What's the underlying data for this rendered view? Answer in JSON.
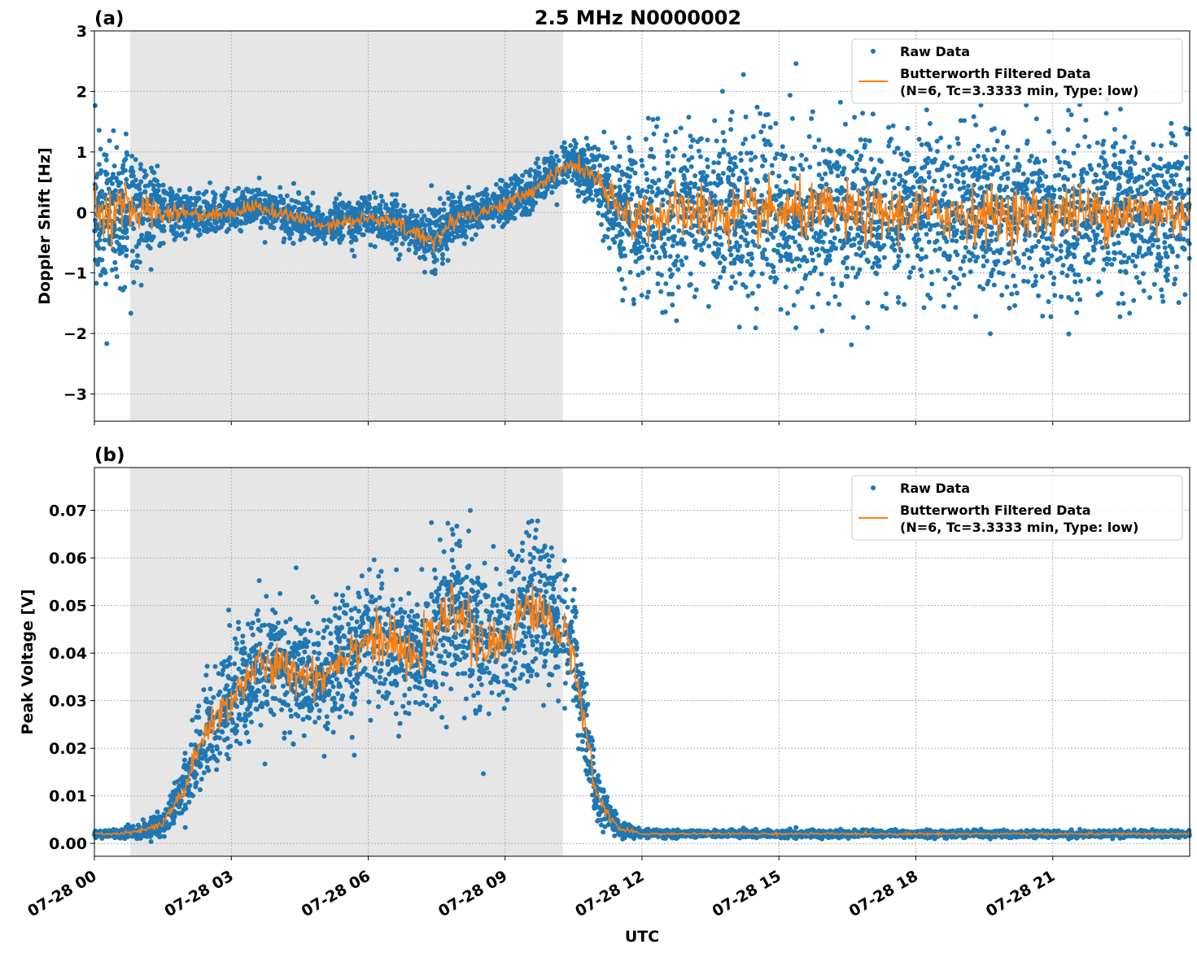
{
  "title": "2.5 MHz N0000002",
  "xlabel": "UTC",
  "colors": {
    "raw": "#1f77b4",
    "filtered": "#ff7f0e",
    "shade": "#e6e6e6"
  },
  "x_ticks": [
    "07-28 00",
    "07-28 03",
    "07-28 06",
    "07-28 09",
    "07-28 12",
    "07-28 15",
    "07-28 18",
    "07-28 21"
  ],
  "chart_data": [
    {
      "type": "scatter",
      "panel_label": "(a)",
      "ylabel": "Doppler Shift [Hz]",
      "xlim": [
        "07-28 00:00",
        "07-29 00:00"
      ],
      "ylim": [
        -3.45,
        3.0
      ],
      "y_ticks": [
        3,
        2,
        1,
        0,
        -1,
        -2,
        -3
      ],
      "y_tick_labels": [
        "3",
        "2",
        "1",
        "0",
        "−1",
        "−2",
        "−3"
      ],
      "grid": true,
      "legend_position": "top-right",
      "shaded_span": [
        "07-28 00:47",
        "07-28 10:16"
      ],
      "legend": [
        "Raw Data",
        "Butterworth Filtered Data",
        "(N=6, Tc=3.3333 min, Type: low)"
      ],
      "times": [
        "00:00",
        "00:30",
        "01:00",
        "01:30",
        "02:00",
        "02:30",
        "03:00",
        "03:30",
        "04:00",
        "04:30",
        "05:00",
        "05:30",
        "06:00",
        "06:30",
        "07:00",
        "07:30",
        "08:00",
        "08:30",
        "09:00",
        "09:30",
        "10:00",
        "10:30",
        "11:00",
        "11:30",
        "12:00",
        "13:00",
        "14:00",
        "15:00",
        "16:00",
        "17:00",
        "18:00",
        "19:00",
        "20:00",
        "21:00",
        "22:00",
        "23:00",
        "24:00"
      ],
      "filtered": [
        0.0,
        0.0,
        0.05,
        0.0,
        0.0,
        -0.05,
        0.0,
        0.1,
        0.0,
        -0.1,
        -0.2,
        -0.15,
        -0.1,
        -0.15,
        -0.35,
        -0.45,
        -0.05,
        0.0,
        0.15,
        0.3,
        0.6,
        0.8,
        0.55,
        0.0,
        -0.05,
        0.0,
        -0.05,
        0.0,
        0.0,
        -0.05,
        0.0,
        0.0,
        -0.05,
        0.0,
        0.0,
        0.0,
        0.0
      ],
      "raw_spread": [
        1.3,
        1.2,
        0.9,
        0.6,
        0.35,
        0.35,
        0.35,
        0.35,
        0.35,
        0.35,
        0.35,
        0.35,
        0.35,
        0.4,
        0.45,
        0.55,
        0.35,
        0.35,
        0.35,
        0.35,
        0.35,
        0.35,
        0.6,
        1.0,
        1.25,
        1.3,
        1.3,
        1.3,
        1.3,
        1.3,
        1.3,
        1.3,
        1.3,
        1.3,
        1.3,
        1.3,
        1.3
      ]
    },
    {
      "type": "scatter",
      "panel_label": "(b)",
      "ylabel": "Peak Voltage [V]",
      "xlim": [
        "07-28 00:00",
        "07-29 00:00"
      ],
      "ylim": [
        -0.0027,
        0.079
      ],
      "y_ticks": [
        0.07,
        0.06,
        0.05,
        0.04,
        0.03,
        0.02,
        0.01,
        0.0
      ],
      "y_tick_labels": [
        "0.07",
        "0.06",
        "0.05",
        "0.04",
        "0.03",
        "0.02",
        "0.01",
        "0.00"
      ],
      "grid": true,
      "legend_position": "top-right",
      "shaded_span": [
        "07-28 00:47",
        "07-28 10:16"
      ],
      "legend": [
        "Raw Data",
        "Butterworth Filtered Data",
        "(N=6, Tc=3.3333 min, Type: low)"
      ],
      "times": [
        "00:00",
        "00:30",
        "01:00",
        "01:30",
        "02:00",
        "02:30",
        "03:00",
        "03:30",
        "04:00",
        "04:30",
        "05:00",
        "05:30",
        "06:00",
        "06:30",
        "07:00",
        "07:30",
        "08:00",
        "08:30",
        "09:00",
        "09:30",
        "10:00",
        "10:30",
        "11:00",
        "11:30",
        "12:00",
        "13:00",
        "14:00",
        "15:00",
        "16:00",
        "17:00",
        "18:00",
        "19:00",
        "20:00",
        "21:00",
        "22:00",
        "23:00",
        "24:00"
      ],
      "filtered": [
        0.002,
        0.002,
        0.0025,
        0.004,
        0.012,
        0.025,
        0.03,
        0.037,
        0.037,
        0.036,
        0.035,
        0.04,
        0.043,
        0.042,
        0.038,
        0.045,
        0.05,
        0.04,
        0.043,
        0.05,
        0.047,
        0.04,
        0.01,
        0.003,
        0.002,
        0.002,
        0.002,
        0.002,
        0.002,
        0.002,
        0.002,
        0.002,
        0.002,
        0.002,
        0.002,
        0.002,
        0.002
      ],
      "raw_spread": [
        0.0007,
        0.0008,
        0.0015,
        0.003,
        0.007,
        0.011,
        0.012,
        0.013,
        0.013,
        0.012,
        0.012,
        0.013,
        0.014,
        0.014,
        0.013,
        0.015,
        0.016,
        0.015,
        0.015,
        0.015,
        0.014,
        0.013,
        0.006,
        0.0015,
        0.0008,
        0.0007,
        0.0007,
        0.0007,
        0.0007,
        0.0007,
        0.0007,
        0.0007,
        0.0007,
        0.0007,
        0.0007,
        0.0007,
        0.0007
      ]
    }
  ]
}
